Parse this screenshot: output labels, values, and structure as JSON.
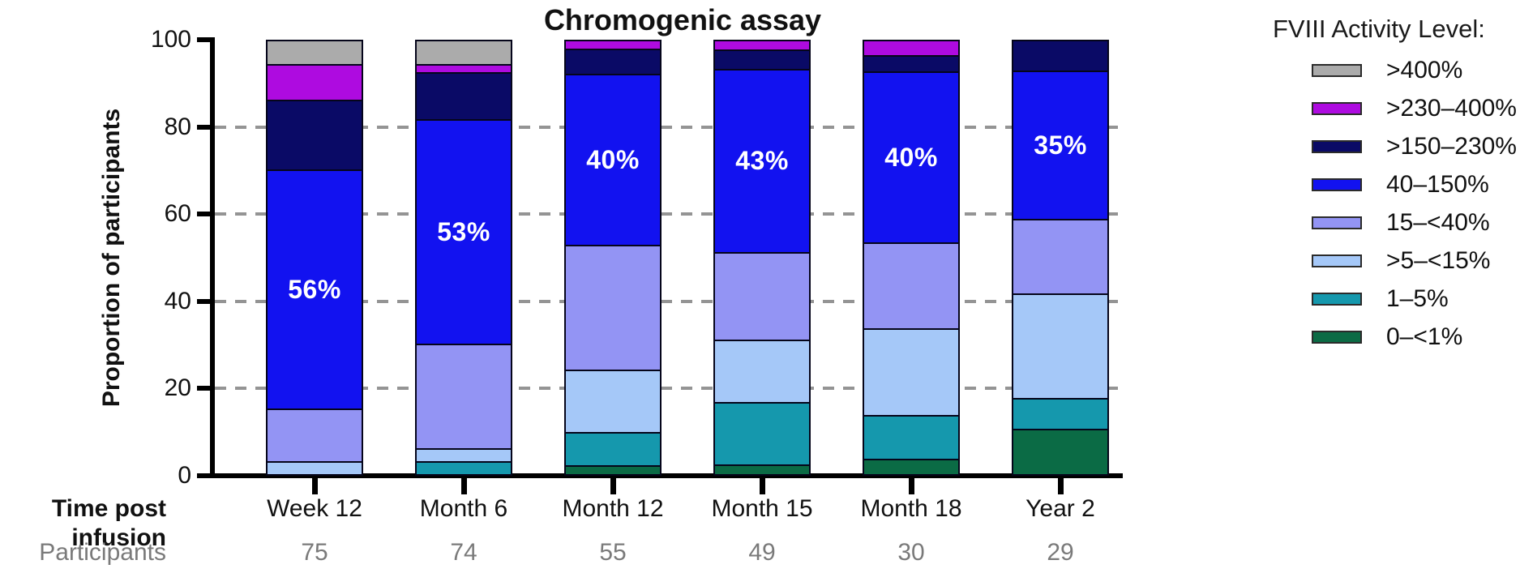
{
  "title": "Chromogenic assay",
  "y_axis": {
    "label": "Proportion of participants",
    "ticks": [
      0,
      20,
      40,
      60,
      80,
      100
    ]
  },
  "x_axis": {
    "row_label": "Time post infusion"
  },
  "participants": {
    "row_label": "Participants",
    "values": [
      "75",
      "74",
      "55",
      "49",
      "30",
      "29"
    ]
  },
  "legend": {
    "title": "FVIII Activity Level:",
    "items": [
      {
        "label": ">400%",
        "color": "#ABABAB"
      },
      {
        "label": ">230–400%",
        "color": "#AE0BE0"
      },
      {
        "label": ">150–230%",
        "color": "#0A0A66"
      },
      {
        "label": "40–150%",
        "color": "#1212F0"
      },
      {
        "label": "15–<40%",
        "color": "#9394F4"
      },
      {
        "label": ">5–<15%",
        "color": "#A5C8F8"
      },
      {
        "label": "1–5%",
        "color": "#1598AD"
      },
      {
        "label": "0–<1%",
        "color": "#0B6B45"
      }
    ]
  },
  "chart_data": {
    "type": "bar",
    "stacked": true,
    "title": "Chromogenic assay",
    "ylabel": "Proportion of participants",
    "ylim": [
      0,
      100
    ],
    "gridlines": [
      20,
      40,
      60,
      80
    ],
    "grid_style": "dashed",
    "legend_position": "right",
    "categories": [
      "Week 12",
      "Month 6",
      "Month 12",
      "Month 15",
      "Month 18",
      "Year 2"
    ],
    "participants": [
      75,
      74,
      55,
      49,
      30,
      29
    ],
    "series": [
      {
        "name": "0–<1%",
        "color": "#0B6B45",
        "values": [
          0,
          0,
          1.8,
          2.0,
          3.3,
          10.3
        ]
      },
      {
        "name": "1–5%",
        "color": "#1598AD",
        "values": [
          0,
          2.7,
          7.3,
          14.3,
          10.0,
          6.9
        ]
      },
      {
        "name": ">5–<15%",
        "color": "#A5C8F8",
        "values": [
          2.7,
          2.7,
          14.5,
          14.3,
          20.0,
          24.1
        ]
      },
      {
        "name": "15–<40%",
        "color": "#9394F4",
        "values": [
          12.0,
          24.3,
          29.1,
          20.4,
          20.0,
          17.2
        ]
      },
      {
        "name": "40–150%",
        "color": "#1212F0",
        "values": [
          56.0,
          52.7,
          40.0,
          42.9,
          40.0,
          34.5
        ]
      },
      {
        "name": ">150–230%",
        "color": "#0A0A66",
        "values": [
          16.0,
          10.8,
          5.5,
          4.1,
          3.3,
          6.9
        ]
      },
      {
        "name": ">230–400%",
        "color": "#AE0BE0",
        "values": [
          8.0,
          1.4,
          1.8,
          2.0,
          3.3,
          0
        ]
      },
      {
        "name": ">400%",
        "color": "#ABABAB",
        "values": [
          5.3,
          5.4,
          0,
          0,
          0,
          0
        ]
      }
    ],
    "bar_labels": {
      "series": "40–150%",
      "labels": [
        "56%",
        "53%",
        "40%",
        "43%",
        "40%",
        "35%"
      ]
    }
  }
}
